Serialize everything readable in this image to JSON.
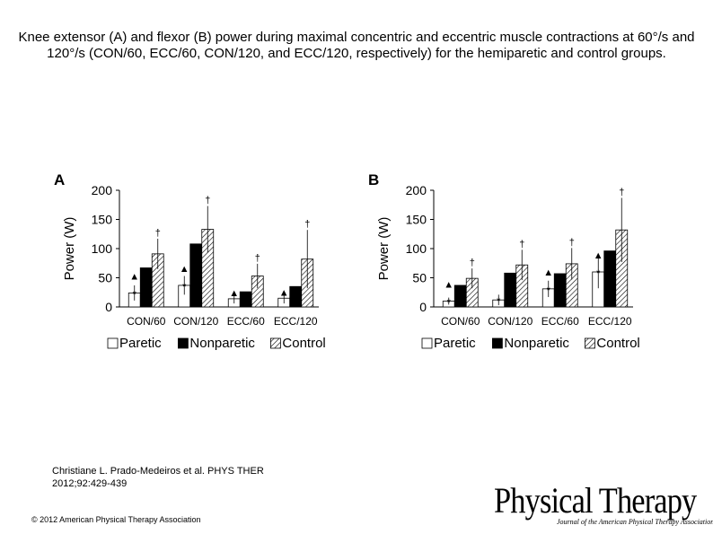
{
  "title": "Knee extensor (A) and flexor (B) power during maximal concentric and eccentric muscle contractions at 60°/s and 120°/s (CON/60, ECC/60, CON/120, and ECC/120, respectively) for the hemiparetic and control groups.",
  "citation": {
    "line1": "Christiane L. Prado-Medeiros et al. PHYS THER",
    "line2": "2012;92:429-439"
  },
  "copyright": "© 2012 American Physical Therapy Association",
  "journal": {
    "name": "Physical Therapy",
    "subtitle": "Journal of the American Physical Therapy Association"
  },
  "chart_data": [
    {
      "type": "bar",
      "panel": "A",
      "ylabel": "Power (W)",
      "ylim": [
        0,
        200
      ],
      "yticks": [
        0,
        50,
        100,
        150,
        200
      ],
      "categories": [
        "CON/60",
        "CON/120",
        "ECC/60",
        "ECC/120"
      ],
      "series": [
        {
          "name": "Paretic",
          "values": [
            24,
            37,
            14,
            15
          ],
          "errors": [
            13,
            16,
            8,
            9
          ],
          "fill": "#ffffff"
        },
        {
          "name": "Nonparetic",
          "values": [
            67,
            108,
            26,
            35
          ],
          "errors": [
            0,
            0,
            0,
            0
          ],
          "fill": "#000000"
        },
        {
          "name": "Control",
          "values": [
            91,
            133,
            53,
            82
          ],
          "errors": [
            26,
            40,
            21,
            50
          ],
          "fill": "hatch"
        }
      ],
      "annotations": [
        {
          "category": "CON/60",
          "series": "Paretic",
          "symbols": [
            "▲",
            "*"
          ]
        },
        {
          "category": "CON/60",
          "series": "Control",
          "symbols": [
            "†"
          ]
        },
        {
          "category": "CON/120",
          "series": "Paretic",
          "symbols": [
            "▲",
            "*"
          ]
        },
        {
          "category": "CON/120",
          "series": "Control",
          "symbols": [
            "†"
          ]
        },
        {
          "category": "ECC/60",
          "series": "Paretic",
          "symbols": [
            "▲"
          ]
        },
        {
          "category": "ECC/60",
          "series": "Control",
          "symbols": [
            "†"
          ]
        },
        {
          "category": "ECC/120",
          "series": "Paretic",
          "symbols": [
            "▲"
          ]
        },
        {
          "category": "ECC/120",
          "series": "Control",
          "symbols": [
            "†"
          ]
        }
      ],
      "legend": [
        "Paretic",
        "Nonparetic",
        "Control"
      ],
      "legend_position": "bottom"
    },
    {
      "type": "bar",
      "panel": "B",
      "ylabel": "Power (W)",
      "ylim": [
        0,
        200
      ],
      "yticks": [
        0,
        50,
        100,
        150,
        200
      ],
      "categories": [
        "CON/60",
        "CON/120",
        "ECC/60",
        "ECC/120"
      ],
      "series": [
        {
          "name": "Paretic",
          "values": [
            10,
            12,
            31,
            60
          ],
          "errors": [
            6,
            9,
            14,
            28
          ],
          "fill": "#ffffff"
        },
        {
          "name": "Nonparetic",
          "values": [
            37,
            58,
            57,
            96
          ],
          "errors": [
            0,
            0,
            0,
            0
          ],
          "fill": "#000000"
        },
        {
          "name": "Control",
          "values": [
            49,
            72,
            74,
            132
          ],
          "errors": [
            17,
            26,
            27,
            55
          ],
          "fill": "hatch"
        }
      ],
      "annotations": [
        {
          "category": "CON/60",
          "series": "Paretic",
          "symbols": [
            "▲",
            "*"
          ]
        },
        {
          "category": "CON/60",
          "series": "Control",
          "symbols": [
            "†"
          ]
        },
        {
          "category": "CON/120",
          "series": "Paretic",
          "symbols": [
            "*"
          ]
        },
        {
          "category": "CON/120",
          "series": "Control",
          "symbols": [
            "†"
          ]
        },
        {
          "category": "ECC/60",
          "series": "Paretic",
          "symbols": [
            "▲",
            "*"
          ]
        },
        {
          "category": "ECC/60",
          "series": "Control",
          "symbols": [
            "†"
          ]
        },
        {
          "category": "ECC/120",
          "series": "Paretic",
          "symbols": [
            "▲",
            "*"
          ]
        },
        {
          "category": "ECC/120",
          "series": "Control",
          "symbols": [
            "†"
          ]
        }
      ],
      "legend": [
        "Paretic",
        "Nonparetic",
        "Control"
      ],
      "legend_position": "bottom"
    }
  ]
}
